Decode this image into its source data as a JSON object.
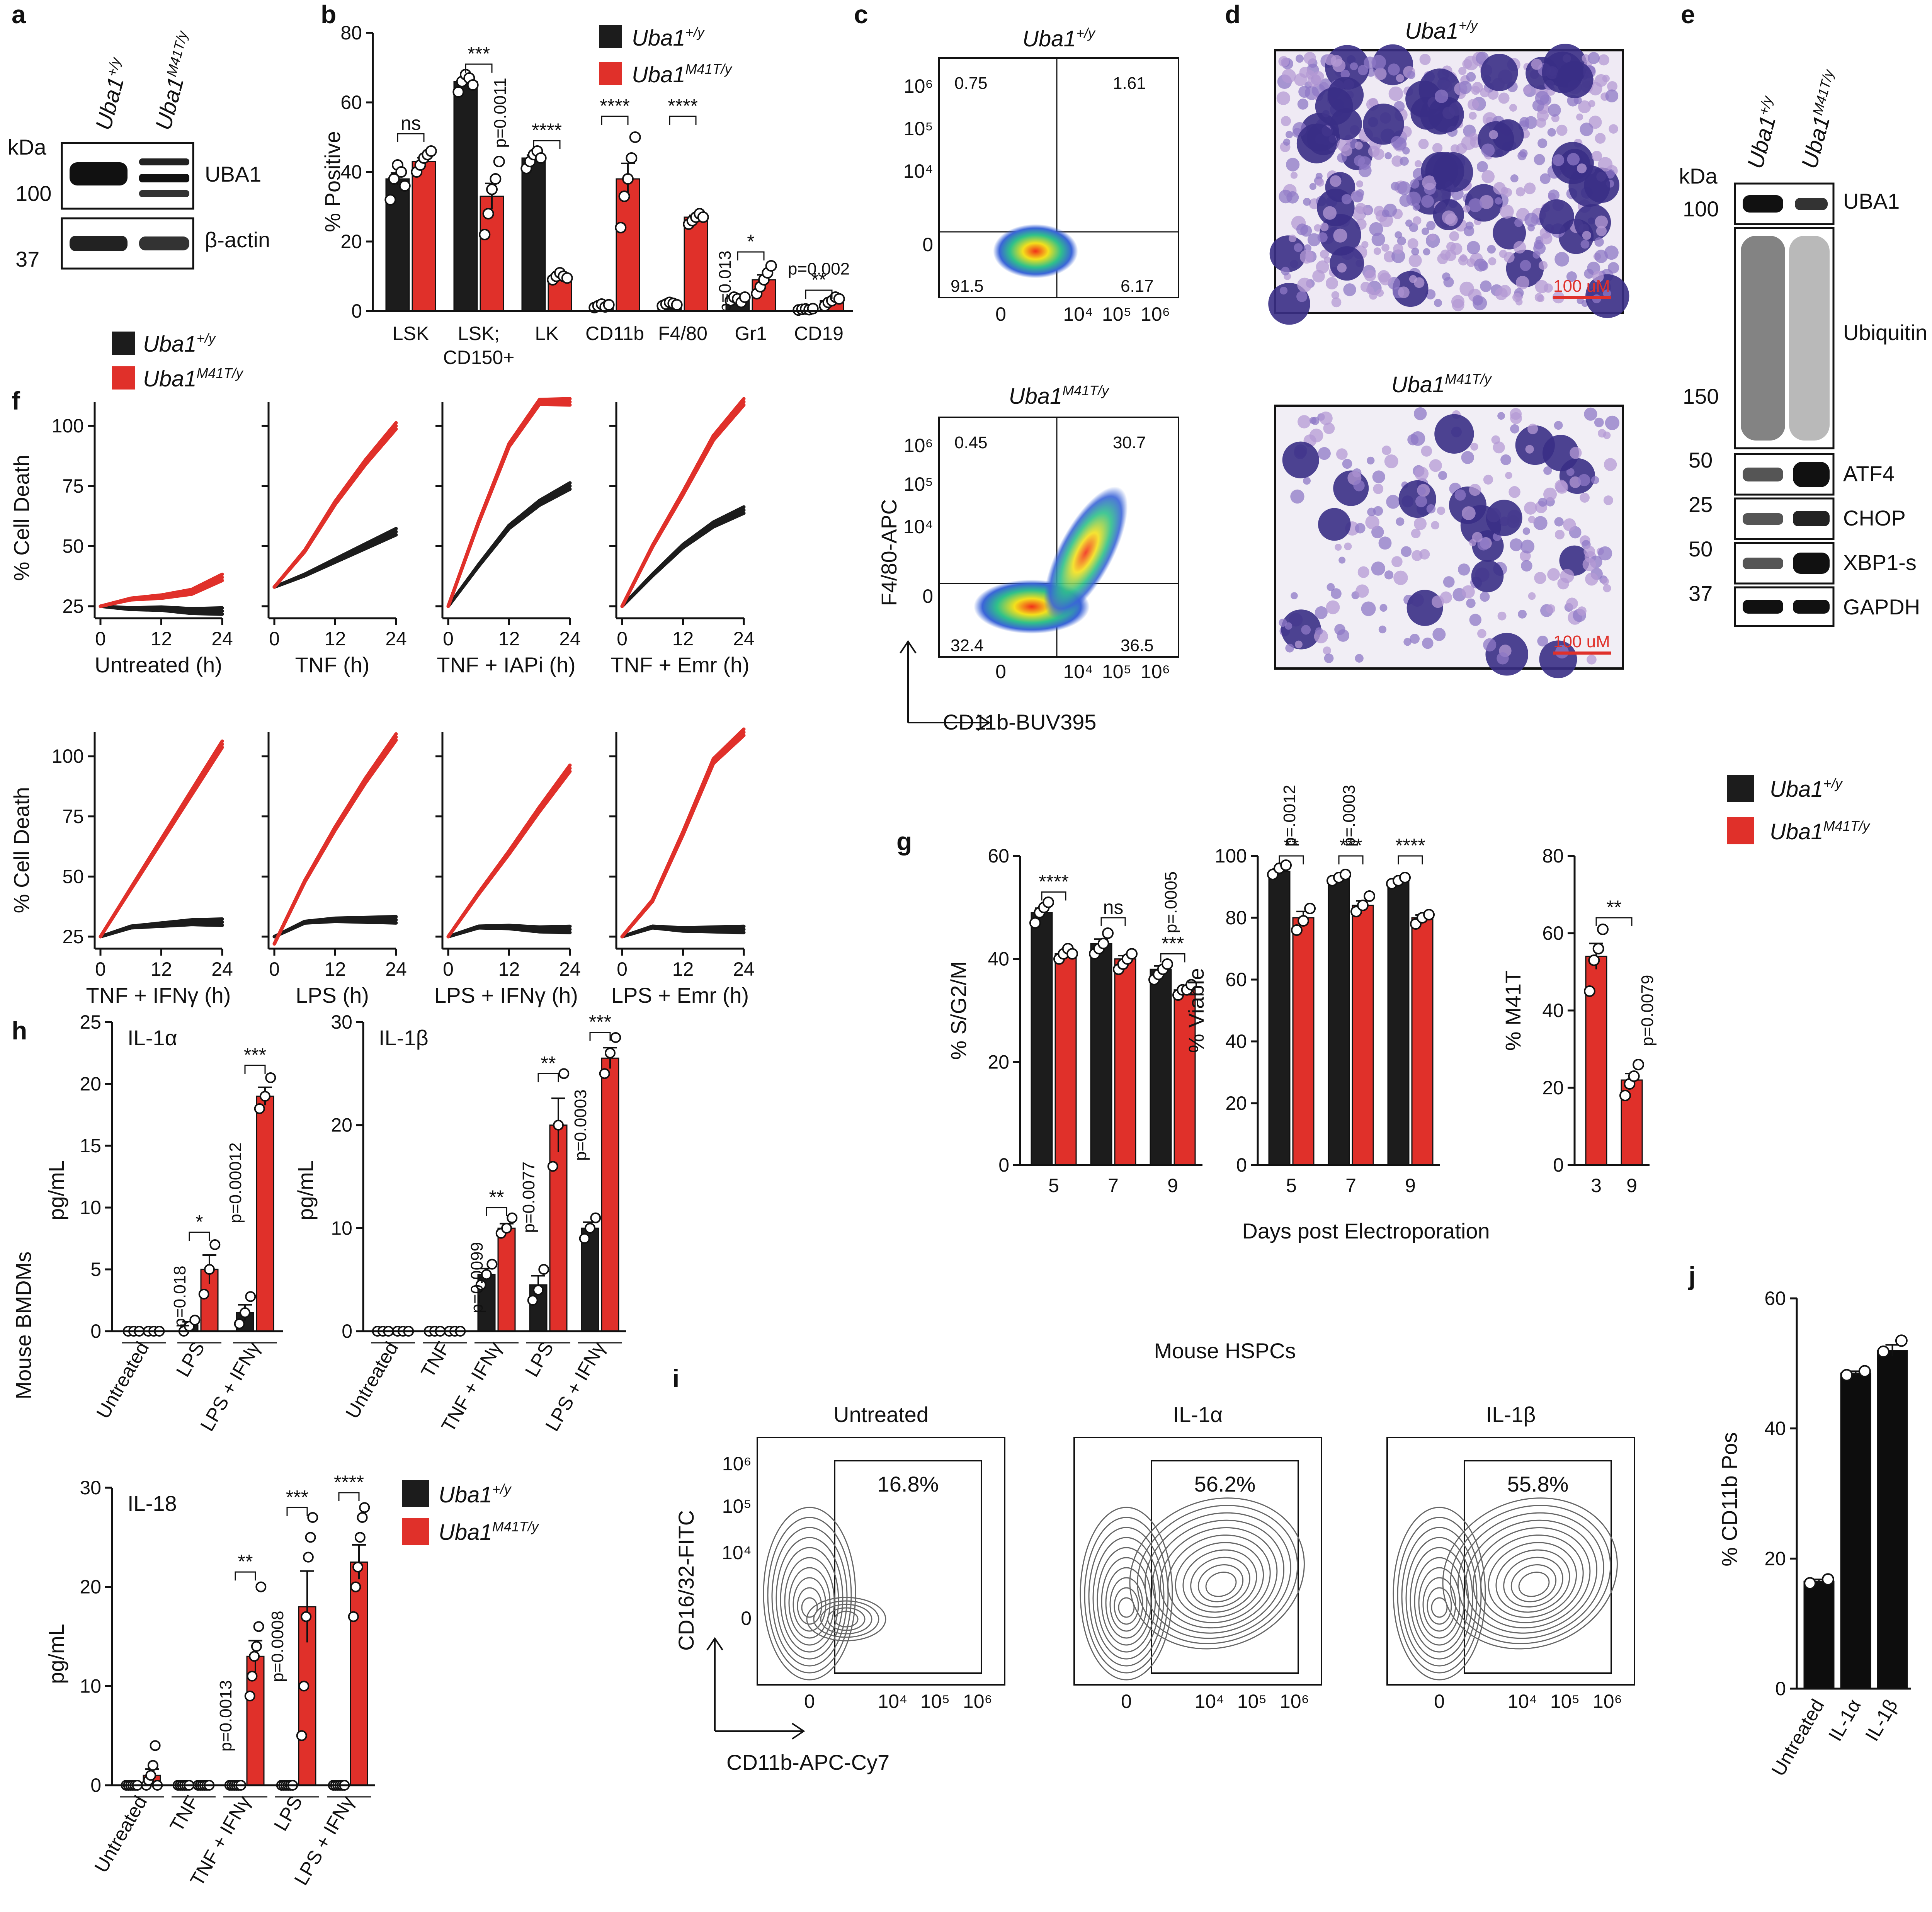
{
  "figure": {
    "genotype_wt": "Uba1+/y",
    "genotype_mut": "Uba1M41T/y",
    "wt_base": "Uba1",
    "wt_sup": "+/y",
    "mut_base": "Uba1",
    "mut_sup": "M41T/y",
    "wt_color": "#1c1c1c",
    "mut_color": "#e0302a"
  },
  "panel_a": {
    "label": "a",
    "kda": "kDa",
    "markers": [
      "100",
      "37"
    ],
    "bands": [
      "UBA1",
      "β-actin"
    ]
  },
  "panel_b": {
    "label": "b",
    "ylabel": "% Positive",
    "yticks": [
      "0",
      "20",
      "40",
      "60",
      "80"
    ],
    "sig": [
      "ns",
      "***",
      "****",
      "****",
      "****",
      "*",
      "**"
    ],
    "pvals": [
      "p=0.0011",
      "p=0.013",
      "p=0.002"
    ]
  },
  "panel_c": {
    "label": "c",
    "xlabel": "CD11b-BUV395",
    "ylabel": "F4/80-APC",
    "ticks_y": [
      "10⁶",
      "10⁵",
      "10⁴",
      "0"
    ],
    "ticks_x": [
      "0",
      "10⁴",
      "10⁵",
      "10⁶"
    ],
    "wt_quads": [
      "0.75",
      "1.61",
      "91.5",
      "6.17"
    ],
    "mut_quads": [
      "0.45",
      "30.7",
      "32.4",
      "36.5"
    ]
  },
  "panel_d": {
    "label": "d",
    "scale": "100 uM"
  },
  "panel_e": {
    "label": "e",
    "kda": "kDa",
    "markers": [
      "100",
      "150",
      "50",
      "25",
      "50",
      "37"
    ],
    "bands": [
      "UBA1",
      "Ubiquitin",
      "ATF4",
      "CHOP",
      "XBP1-s",
      "GAPDH"
    ]
  },
  "panel_f": {
    "label": "f",
    "ylabel": "% Cell Death",
    "yticks": [
      "25",
      "50",
      "75",
      "100"
    ],
    "xticks": [
      "0",
      "12",
      "24"
    ],
    "subplots": [
      "Untreated (h)",
      "TNF (h)",
      "TNF + IAPi (h)",
      "TNF + Emr (h)",
      "TNF + IFNγ (h)",
      "LPS (h)",
      "LPS + IFNγ (h)",
      "LPS + Emr (h)"
    ]
  },
  "panel_g": {
    "label": "g",
    "xlabel": "Days post Electroporation",
    "plots": [
      {
        "ylabel": "% S/G2/M",
        "yticks": [
          "0",
          "20",
          "40",
          "60"
        ],
        "days": [
          "5",
          "7",
          "9"
        ],
        "sig": [
          "****",
          "ns",
          "***"
        ],
        "pvals": [
          "p=.0005"
        ]
      },
      {
        "ylabel": "% Viable",
        "yticks": [
          "0",
          "20",
          "40",
          "60",
          "80",
          "100"
        ],
        "days": [
          "5",
          "7",
          "9"
        ],
        "sig": [
          "**",
          "***",
          "****"
        ],
        "pvals": [
          "p=.0012",
          "p=.0003"
        ]
      },
      {
        "ylabel": "% M41T",
        "yticks": [
          "0",
          "20",
          "40",
          "60",
          "80"
        ],
        "days": [
          "3",
          "9"
        ],
        "sig": [
          "**"
        ],
        "pvals": [
          "p=0.0079"
        ]
      }
    ]
  },
  "panel_h": {
    "label": "h",
    "side_label": "Mouse BMDMs",
    "ylabel": "pg/mL",
    "plots": [
      {
        "title": "IL-1α",
        "yticks": [
          "0",
          "5",
          "10",
          "15",
          "20",
          "25"
        ],
        "groups": [
          "Untreated",
          "LPS",
          "LPS + IFNγ"
        ],
        "sig": [
          "*",
          "***"
        ],
        "pvals": [
          "p=0.018",
          "p=0.00012"
        ]
      },
      {
        "title": "IL-1β",
        "yticks": [
          "0",
          "10",
          "20",
          "30"
        ],
        "groups": [
          "Untreated",
          "TNF",
          "TNF + IFNγ",
          "LPS",
          "LPS + IFNγ"
        ],
        "sig": [
          "**",
          "**",
          "***"
        ],
        "pvals": [
          "p=0.0099",
          "p=0.0077",
          "p=0.0003"
        ]
      },
      {
        "title": "IL-18",
        "yticks": [
          "0",
          "10",
          "20",
          "30"
        ],
        "groups": [
          "Untreated",
          "TNF",
          "TNF + IFNγ",
          "LPS",
          "LPS + IFNγ"
        ],
        "sig": [
          "**",
          "***",
          "****"
        ],
        "pvals": [
          "p=0.0013",
          "p=0.0008"
        ]
      }
    ]
  },
  "panel_i": {
    "label": "i",
    "title": "Mouse HSPCs",
    "xlabel": "CD11b-APC-Cy7",
    "ylabel": "CD16/32-FITC",
    "ticks_y": [
      "10⁶",
      "10⁵",
      "10⁴",
      "0"
    ],
    "ticks_x": [
      "0",
      "10⁴",
      "10⁵",
      "10⁶"
    ],
    "plots": [
      {
        "title": "Untreated",
        "gate": "16.8%"
      },
      {
        "title": "IL-1α",
        "gate": "56.2%"
      },
      {
        "title": "IL-1β",
        "gate": "55.8%"
      }
    ]
  },
  "panel_j": {
    "label": "j",
    "ylabel": "% CD11b Pos",
    "yticks": [
      "0",
      "20",
      "40",
      "60"
    ],
    "categories": [
      "Untreated",
      "IL-1α",
      "IL-1β"
    ]
  },
  "chart_data": [
    {
      "type": "bar",
      "panel": "b",
      "categories": [
        "LSK",
        "LSK; CD150+",
        "LK",
        "CD11b",
        "F4/80",
        "Gr1",
        "CD19"
      ],
      "ylabel": "% Positive",
      "ylim": [
        0,
        80
      ],
      "series": [
        {
          "name": "Uba1+/y",
          "values": [
            38,
            66,
            44,
            1.5,
            2,
            3.5,
            0.5
          ],
          "points": [
            [
              32,
              38,
              42,
              40,
              36
            ],
            [
              63,
              66,
              68,
              67,
              65
            ],
            [
              41,
              43,
              45,
              46,
              44
            ],
            [
              1,
              1.5,
              2,
              1.2,
              1.8
            ],
            [
              1.5,
              2,
              2.5,
              2.2,
              1.8
            ],
            [
              3,
              4,
              3.5,
              2.5,
              4
            ],
            [
              0.3,
              0.5,
              0.6,
              0.4,
              0.7
            ]
          ]
        },
        {
          "name": "Uba1M41T/y",
          "values": [
            43,
            33,
            10,
            38,
            27,
            9,
            3
          ],
          "points": [
            [
              40,
              42,
              44,
              45,
              46
            ],
            [
              22,
              28,
              35,
              38,
              43
            ],
            [
              9,
              10,
              11,
              10,
              9.5
            ],
            [
              24,
              33,
              38,
              44,
              50
            ],
            [
              25,
              26,
              27,
              28,
              27
            ],
            [
              5,
              7,
              9,
              11,
              13
            ],
            [
              1.5,
              2.5,
              3,
              4,
              3.5
            ]
          ]
        }
      ]
    },
    {
      "type": "scatter",
      "panel": "c",
      "genotype": "Uba1+/y",
      "quadrants": {
        "upper_left": 0.75,
        "upper_right": 1.61,
        "lower_left": 91.5,
        "lower_right": 6.17
      }
    },
    {
      "type": "scatter",
      "panel": "c",
      "genotype": "Uba1M41T/y",
      "quadrants": {
        "upper_left": 0.45,
        "upper_right": 30.7,
        "lower_left": 32.4,
        "lower_right": 36.5
      }
    },
    {
      "type": "line",
      "panel": "f",
      "x": [
        0,
        6,
        12,
        18,
        24
      ],
      "xlim": [
        0,
        24
      ],
      "ylim": [
        20,
        110
      ],
      "subplots": [
        {
          "name": "Untreated (h)",
          "wt": [
            25,
            24,
            24,
            23,
            23
          ],
          "mut": [
            25,
            28,
            29,
            31,
            37
          ]
        },
        {
          "name": "TNF (h)",
          "wt": [
            33,
            38,
            44,
            50,
            56
          ],
          "mut": [
            33,
            48,
            68,
            85,
            100
          ]
        },
        {
          "name": "TNF + IAPi (h)",
          "wt": [
            25,
            42,
            58,
            68,
            75
          ],
          "mut": [
            25,
            60,
            92,
            110,
            110
          ]
        },
        {
          "name": "TNF + Emr (h)",
          "wt": [
            25,
            38,
            50,
            59,
            65
          ],
          "mut": [
            25,
            50,
            72,
            95,
            110
          ]
        },
        {
          "name": "TNF + IFNγ (h)",
          "wt": [
            25,
            29,
            30,
            31,
            31
          ],
          "mut": [
            25,
            45,
            65,
            85,
            105
          ]
        },
        {
          "name": "LPS (h)",
          "wt": [
            25,
            31,
            32,
            32,
            32
          ],
          "mut": [
            22,
            48,
            70,
            90,
            108
          ]
        },
        {
          "name": "LPS + IFNγ (h)",
          "wt": [
            25,
            29,
            29,
            28,
            28
          ],
          "mut": [
            25,
            43,
            60,
            78,
            95
          ]
        },
        {
          "name": "LPS + Emr (h)",
          "wt": [
            25,
            29,
            28,
            28,
            28
          ],
          "mut": [
            25,
            40,
            68,
            98,
            110
          ]
        }
      ]
    },
    {
      "type": "bar",
      "panel": "g",
      "categories": [
        "5",
        "7",
        "9"
      ],
      "ylabel": "% S/G2/M",
      "ylim": [
        0,
        60
      ],
      "series": [
        {
          "name": "Uba1+/y",
          "values": [
            49,
            43,
            38
          ],
          "points": [
            [
              47,
              49,
              50,
              51
            ],
            [
              41,
              42,
              43,
              45
            ],
            [
              36,
              37,
              38,
              39
            ]
          ]
        },
        {
          "name": "Uba1M41T/y",
          "values": [
            41,
            40,
            34
          ],
          "points": [
            [
              40,
              41,
              42,
              41
            ],
            [
              38,
              39,
              40,
              41
            ],
            [
              33,
              34,
              34,
              35
            ]
          ]
        }
      ]
    },
    {
      "type": "bar",
      "panel": "g",
      "categories": [
        "5",
        "7",
        "9"
      ],
      "ylabel": "% Viable",
      "ylim": [
        0,
        100
      ],
      "series": [
        {
          "name": "Uba1+/y",
          "values": [
            95,
            93,
            92
          ],
          "points": [
            [
              94,
              96,
              97
            ],
            [
              92,
              93,
              94
            ],
            [
              91,
              92,
              93
            ]
          ]
        },
        {
          "name": "Uba1M41T/y",
          "values": [
            80,
            84,
            80
          ],
          "points": [
            [
              76,
              79,
              83
            ],
            [
              82,
              84,
              87
            ],
            [
              78,
              80,
              81
            ]
          ]
        }
      ]
    },
    {
      "type": "bar",
      "panel": "g",
      "categories": [
        "3",
        "9"
      ],
      "ylabel": "% M41T",
      "ylim": [
        0,
        80
      ],
      "series": [
        {
          "name": "Uba1M41T/y",
          "values": [
            54,
            22
          ],
          "points": [
            [
              45,
              53,
              56,
              61
            ],
            [
              18,
              21,
              23,
              26
            ]
          ]
        }
      ]
    },
    {
      "type": "bar",
      "panel": "h",
      "title": "IL-1α",
      "categories": [
        "Untreated",
        "LPS",
        "LPS + IFNγ"
      ],
      "ylabel": "pg/mL",
      "ylim": [
        0,
        25
      ],
      "series": [
        {
          "name": "Uba1+/y",
          "values": [
            0,
            0.5,
            1.5
          ],
          "points": [
            [
              0,
              0,
              0
            ],
            [
              0,
              0.4,
              0.9
            ],
            [
              0.6,
              1.5,
              2.8
            ]
          ]
        },
        {
          "name": "Uba1M41T/y",
          "values": [
            0,
            5,
            19
          ],
          "points": [
            [
              0,
              0,
              0
            ],
            [
              3,
              5,
              7
            ],
            [
              18,
              19,
              20.5
            ]
          ]
        }
      ]
    },
    {
      "type": "bar",
      "panel": "h",
      "title": "IL-1β",
      "categories": [
        "Untreated",
        "TNF",
        "TNF + IFNγ",
        "LPS",
        "LPS + IFNγ"
      ],
      "ylabel": "pg/mL",
      "ylim": [
        0,
        30
      ],
      "series": [
        {
          "name": "Uba1+/y",
          "values": [
            0,
            0,
            5.5,
            4.5,
            10
          ],
          "points": [
            [
              0,
              0,
              0
            ],
            [
              0,
              0,
              0
            ],
            [
              4.5,
              5.5,
              6.5
            ],
            [
              3,
              4,
              6
            ],
            [
              9,
              10,
              11
            ]
          ]
        },
        {
          "name": "Uba1M41T/y",
          "values": [
            0,
            0,
            10,
            20,
            26.5
          ],
          "points": [
            [
              0,
              0,
              0
            ],
            [
              0,
              0,
              0
            ],
            [
              9.5,
              10,
              11
            ],
            [
              16,
              20,
              25
            ],
            [
              25,
              27,
              28.5
            ]
          ]
        }
      ]
    },
    {
      "type": "bar",
      "panel": "h",
      "title": "IL-18",
      "categories": [
        "Untreated",
        "TNF",
        "TNF + IFNγ",
        "LPS",
        "LPS + IFNγ"
      ],
      "ylabel": "pg/mL",
      "ylim": [
        0,
        30
      ],
      "series": [
        {
          "name": "Uba1+/y",
          "values": [
            0,
            0,
            0,
            0,
            0
          ],
          "points": [
            [
              0,
              0,
              0,
              0,
              0,
              0
            ],
            [
              0,
              0,
              0,
              0,
              0,
              0
            ],
            [
              0,
              0,
              0,
              0,
              0,
              0
            ],
            [
              0,
              0,
              0,
              0,
              0,
              0
            ],
            [
              0,
              0,
              0,
              0,
              0,
              0
            ]
          ]
        },
        {
          "name": "Uba1M41T/y",
          "values": [
            1,
            0,
            13,
            18,
            22.5
          ],
          "points": [
            [
              0,
              0.5,
              1,
              2,
              4,
              0
            ],
            [
              0,
              0,
              0,
              0,
              0,
              0
            ],
            [
              9,
              11,
              13,
              14,
              16,
              20
            ],
            [
              5,
              10,
              17,
              23,
              25,
              27
            ],
            [
              17,
              20,
              22,
              25,
              27,
              28
            ]
          ]
        }
      ]
    },
    {
      "type": "scatter",
      "panel": "i",
      "gates": [
        {
          "name": "Untreated",
          "value": 16.8
        },
        {
          "name": "IL-1α",
          "value": 56.2
        },
        {
          "name": "IL-1β",
          "value": 55.8
        }
      ]
    },
    {
      "type": "bar",
      "panel": "j",
      "categories": [
        "Untreated",
        "IL-1α",
        "IL-1β"
      ],
      "ylabel": "% CD11b Pos",
      "ylim": [
        0,
        60
      ],
      "series": [
        {
          "values": [
            16.5,
            48.5,
            52
          ],
          "points": [
            [
              16.2,
              16.8
            ],
            [
              48.2,
              48.8
            ],
            [
              51.8,
              53.5
            ]
          ]
        }
      ]
    }
  ]
}
